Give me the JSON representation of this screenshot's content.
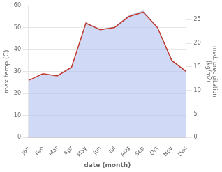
{
  "chart_data": {
    "type": "line",
    "xlabel": "date (month)",
    "ylabel": "max temp (C)",
    "y2label": "med. precipitation\n(kg/m2)",
    "categories": [
      "Jan",
      "Feb",
      "Mar",
      "Apr",
      "May",
      "Jun",
      "Jul",
      "Aug",
      "Sep",
      "Oct",
      "Nov",
      "Dec"
    ],
    "series": [
      {
        "type": "line",
        "color": "#c0392b",
        "values": [
          26,
          29,
          28,
          32,
          52,
          49,
          50,
          55,
          57,
          50,
          35,
          30
        ],
        "axis": "y"
      },
      {
        "type": "area",
        "color": "#aabbee",
        "values": [
          12.0,
          13.5,
          13.0,
          15.0,
          24.5,
          23.0,
          23.5,
          26.0,
          27.0,
          23.5,
          16.5,
          14.0
        ],
        "axis": "y2"
      }
    ],
    "ylim": [
      0,
      60
    ],
    "yticks": [
      0,
      10,
      20,
      30,
      40,
      50,
      60
    ],
    "y2lim": [
      0,
      28
    ],
    "y2ticks": [
      0,
      5,
      10,
      15,
      20,
      25
    ],
    "grid": true
  }
}
